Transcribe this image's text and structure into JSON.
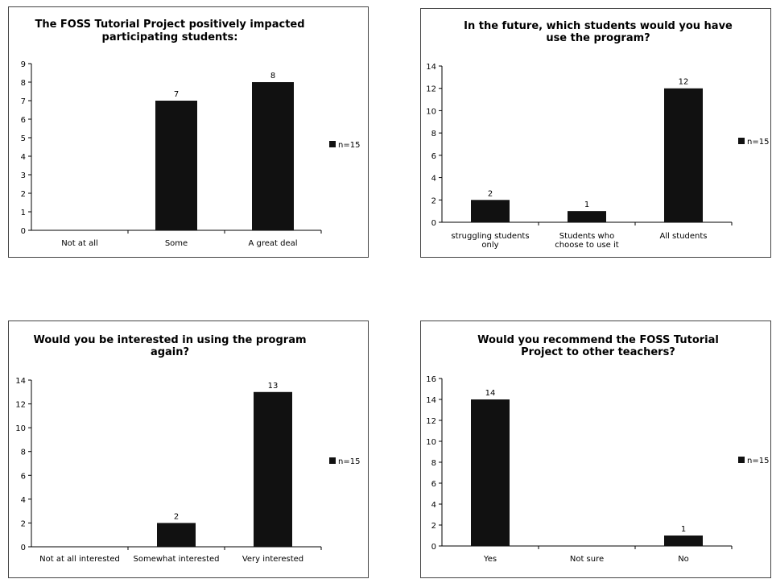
{
  "chart_data": [
    {
      "type": "bar",
      "title": "The FOSS Tutorial Project positively impacted participating students:",
      "categories": [
        "Not at all",
        "Some",
        "A great deal"
      ],
      "series": [
        {
          "name": "n=15",
          "values": [
            0,
            7,
            8
          ]
        }
      ],
      "data_labels": [
        "",
        "7",
        "8"
      ],
      "ylim": [
        0,
        9
      ],
      "yticks": [
        0,
        1,
        2,
        3,
        4,
        5,
        6,
        7,
        8,
        9
      ],
      "grid": false,
      "legend": "right",
      "colors": {
        "bar": "#111111"
      }
    },
    {
      "type": "bar",
      "title": "In the future, which students would you have use the program?",
      "categories": [
        "struggling students only",
        "Students who choose to use it",
        "All students"
      ],
      "series": [
        {
          "name": "n=15",
          "values": [
            2,
            1,
            12
          ]
        }
      ],
      "data_labels": [
        "2",
        "1",
        "12"
      ],
      "ylim": [
        0,
        14
      ],
      "yticks": [
        0,
        2,
        4,
        6,
        8,
        10,
        12,
        14
      ],
      "grid": false,
      "legend": "right",
      "colors": {
        "bar": "#111111"
      }
    },
    {
      "type": "bar",
      "title": "Would you be interested in using the program again?",
      "categories": [
        "Not at all interested",
        "Somewhat interested",
        "Very interested"
      ],
      "series": [
        {
          "name": "n=15",
          "values": [
            0,
            2,
            13
          ]
        }
      ],
      "data_labels": [
        "",
        "2",
        "13"
      ],
      "ylim": [
        0,
        14
      ],
      "yticks": [
        0,
        2,
        4,
        6,
        8,
        10,
        12,
        14
      ],
      "grid": false,
      "legend": "right",
      "colors": {
        "bar": "#111111"
      }
    },
    {
      "type": "bar",
      "title": "Would you recommend the FOSS Tutorial Project to other teachers?",
      "categories": [
        "Yes",
        "Not sure",
        "No"
      ],
      "series": [
        {
          "name": "n=15",
          "values": [
            14,
            0,
            1
          ]
        }
      ],
      "data_labels": [
        "14",
        "",
        "1"
      ],
      "ylim": [
        0,
        16
      ],
      "yticks": [
        0,
        2,
        4,
        6,
        8,
        10,
        12,
        14,
        16
      ],
      "grid": false,
      "legend": "right",
      "colors": {
        "bar": "#111111"
      }
    }
  ]
}
